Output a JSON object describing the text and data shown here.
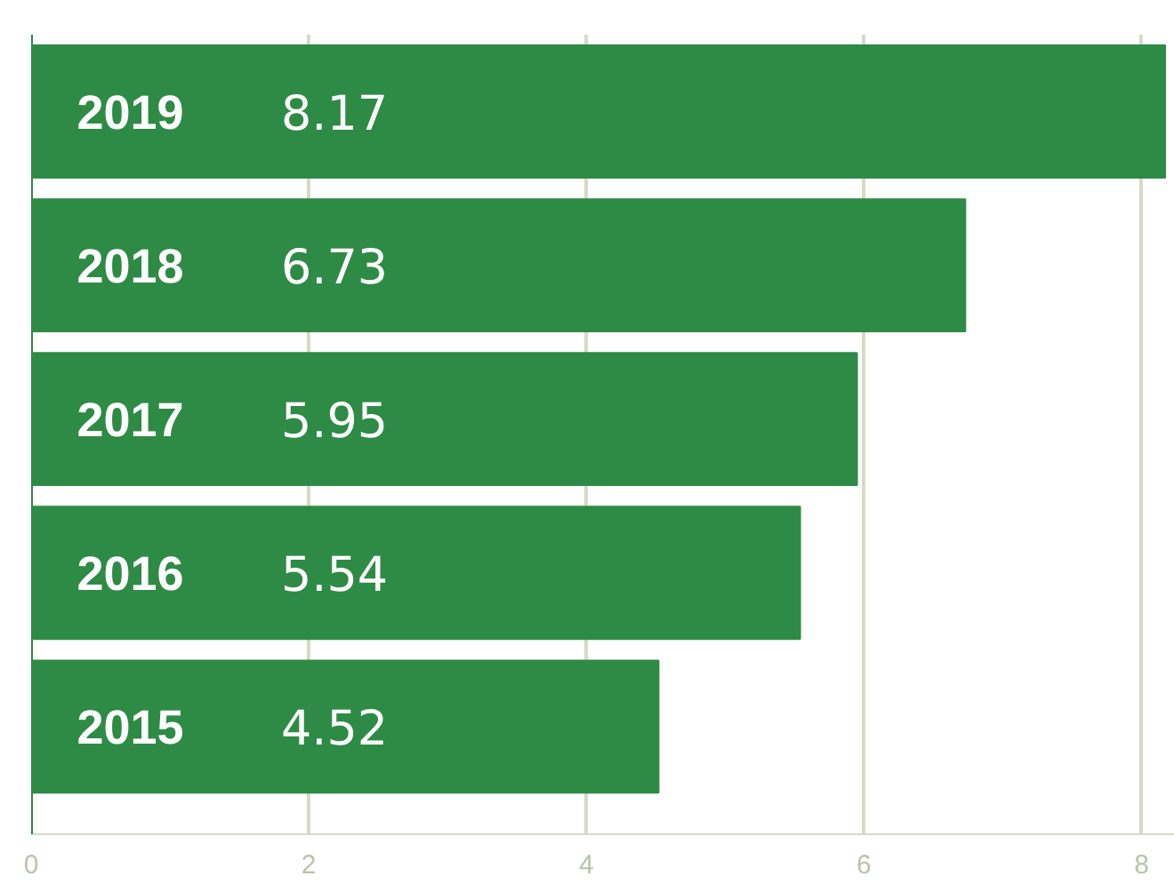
{
  "chart_data": {
    "type": "bar",
    "orientation": "horizontal",
    "categories": [
      "2019",
      "2018",
      "2017",
      "2016",
      "2015"
    ],
    "values": [
      8.17,
      6.73,
      5.95,
      5.54,
      4.52
    ],
    "color": "#2e8b45",
    "data_labels": true,
    "xlim": [
      0,
      8.24
    ],
    "xticks": [
      0,
      2,
      4,
      6,
      8
    ],
    "grid": "x"
  }
}
